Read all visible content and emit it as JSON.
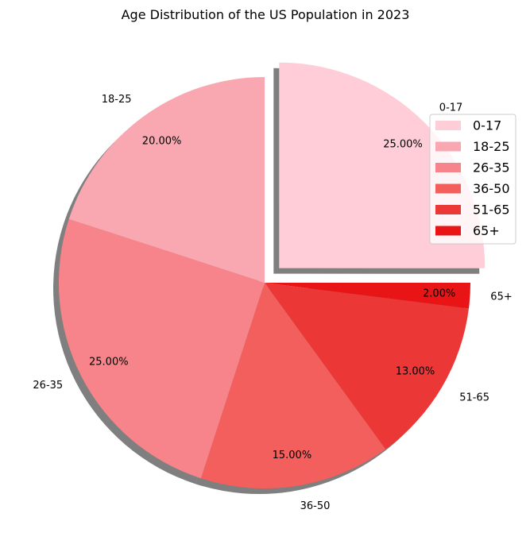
{
  "chart_data": {
    "type": "pie",
    "title": "Age Distribution of the US Population in 2023",
    "categories": [
      "0-17",
      "18-25",
      "26-35",
      "36-50",
      "51-65",
      "65+"
    ],
    "values": [
      25,
      20,
      25,
      15,
      13,
      2
    ],
    "percent_labels": [
      "25.00%",
      "20.00%",
      "25.00%",
      "15.00%",
      "13.00%",
      "2.00%"
    ],
    "colors": [
      "#ffcdd7",
      "#f9a7b0",
      "#f7848a",
      "#f25f5c",
      "#ec3737",
      "#e81416"
    ],
    "exploded": [
      "0-17"
    ],
    "shadow": true,
    "start_angle_deg": 0,
    "direction": "counterclockwise",
    "legend": {
      "position": "upper-right",
      "entries": [
        "0-17",
        "18-25",
        "26-35",
        "36-50",
        "51-65",
        "65+"
      ]
    }
  }
}
